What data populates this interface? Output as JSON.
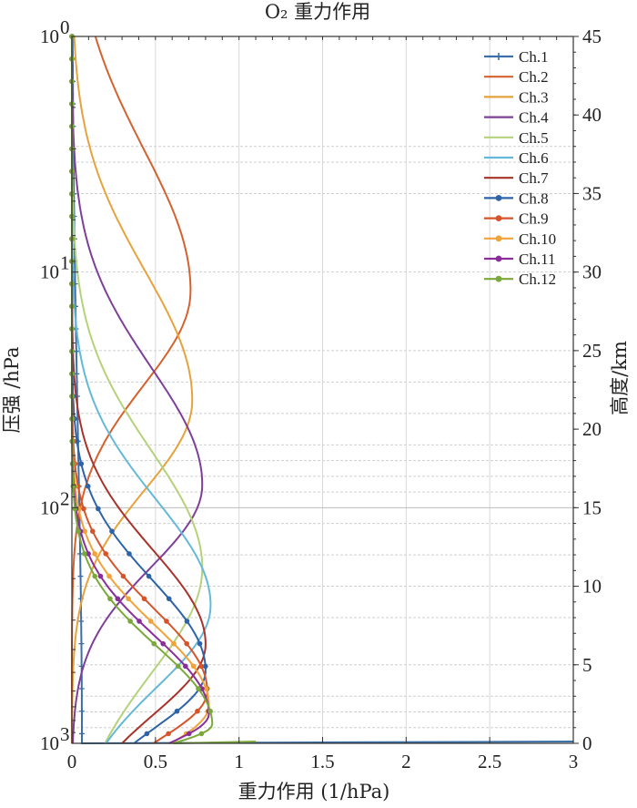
{
  "chart_data": {
    "type": "line",
    "title": "O₂ 重力作用",
    "xlabel": "重力作用 (1/hPa)",
    "ylabel": "压强 /hPa",
    "y2label": "高度/km",
    "xlim": [
      0,
      3
    ],
    "ylim": [
      1000,
      1
    ],
    "y_scale": "log",
    "y2lim": [
      0,
      45
    ],
    "x_ticks": [
      "0",
      "0.5",
      "1",
      "1.5",
      "2",
      "2.5",
      "3"
    ],
    "y_ticks": [
      {
        "value": 1,
        "label": "10",
        "exp": "0"
      },
      {
        "value": 10,
        "label": "10",
        "exp": "1"
      },
      {
        "value": 100,
        "label": "10",
        "exp": "2"
      },
      {
        "value": 1000,
        "label": "10",
        "exp": "3"
      }
    ],
    "y2_ticks": [
      "0",
      "5",
      "10",
      "15",
      "20",
      "25",
      "30",
      "35",
      "40",
      "45"
    ],
    "grid": {
      "vertical": true,
      "horizontal_y2": true
    },
    "legend_position": "top-right",
    "series": [
      {
        "name": "Ch.1",
        "color": "#3a6fa8",
        "marker": "plus",
        "peak": 0.06,
        "p_peak": 1000,
        "w_up": 1.3,
        "w_down": 0.1,
        "surface_spike": 3.0
      },
      {
        "name": "Ch.2",
        "color": "#d4622e",
        "marker": "none",
        "peak": 0.71,
        "p_peak": 12,
        "w_up": 0.6,
        "w_down": 0.4
      },
      {
        "name": "Ch.3",
        "color": "#e6a23c",
        "marker": "none",
        "peak": 0.72,
        "p_peak": 35,
        "w_up": 0.55,
        "w_down": 0.38
      },
      {
        "name": "Ch.4",
        "color": "#7e3f98",
        "marker": "none",
        "peak": 0.78,
        "p_peak": 80,
        "w_up": 0.5,
        "w_down": 0.35
      },
      {
        "name": "Ch.5",
        "color": "#b5d27a",
        "marker": "none",
        "peak": 0.78,
        "p_peak": 180,
        "w_up": 0.5,
        "w_down": 0.45
      },
      {
        "name": "Ch.6",
        "color": "#64b8d8",
        "marker": "none",
        "peak": 0.83,
        "p_peak": 260,
        "w_up": 0.45,
        "w_down": 0.35
      },
      {
        "name": "Ch.7",
        "color": "#a8332a",
        "marker": "none",
        "peak": 0.8,
        "p_peak": 380,
        "w_up": 0.4,
        "w_down": 0.3
      },
      {
        "name": "Ch.8",
        "color": "#2d63a8",
        "marker": "dot",
        "peak": 0.8,
        "p_peak": 490,
        "w_up": 0.38,
        "w_down": 0.25
      },
      {
        "name": "Ch.9",
        "color": "#d6542a",
        "marker": "dot",
        "peak": 0.81,
        "p_peak": 600,
        "w_up": 0.35,
        "w_down": 0.22
      },
      {
        "name": "Ch.10",
        "color": "#f0a33a",
        "marker": "dot",
        "peak": 0.82,
        "p_peak": 690,
        "w_up": 0.34,
        "w_down": 0.2
      },
      {
        "name": "Ch.11",
        "color": "#8a2e9a",
        "marker": "dot",
        "peak": 0.82,
        "p_peak": 750,
        "w_up": 0.33,
        "w_down": 0.15
      },
      {
        "name": "Ch.12",
        "color": "#7aa83a",
        "marker": "dot",
        "peak": 0.84,
        "p_peak": 830,
        "w_up": 0.33,
        "w_down": 0.1,
        "surface_spike": 1.1
      }
    ]
  }
}
